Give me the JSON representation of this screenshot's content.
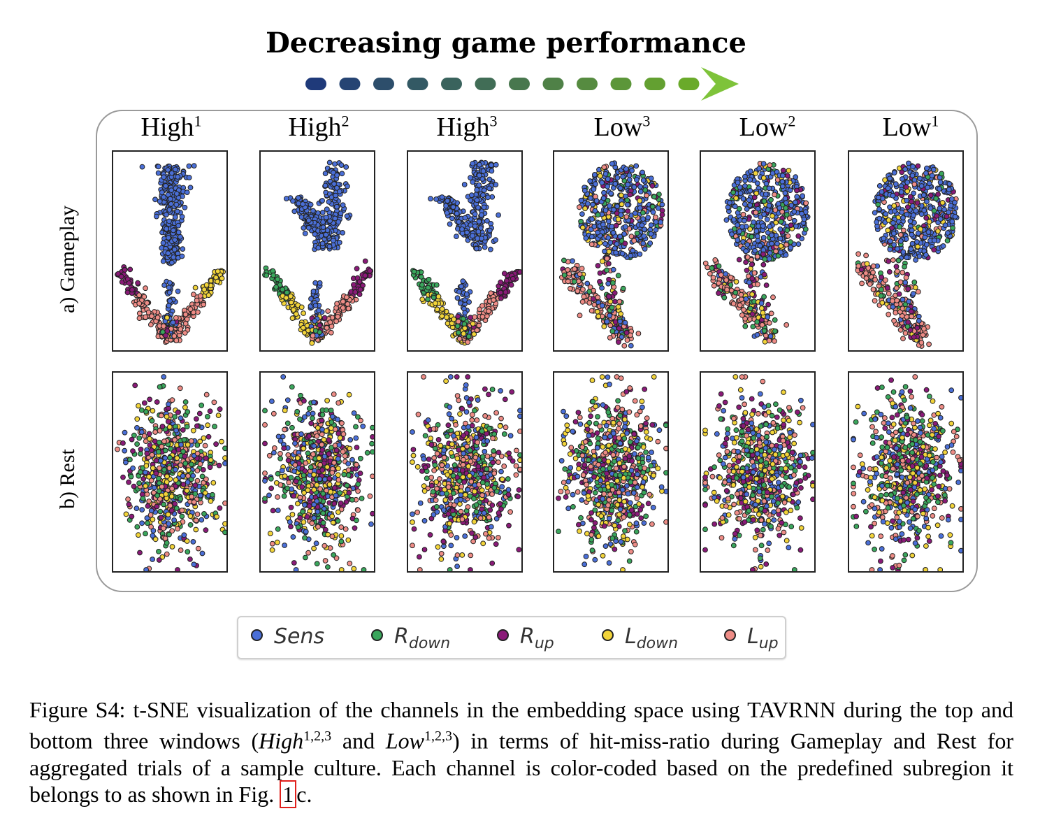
{
  "heading": "Decreasing game performance",
  "arrow_colors": [
    "#1f3a7a",
    "#6aaa2a",
    "#7ec33a"
  ],
  "columns": [
    {
      "label": "High",
      "sup": "1"
    },
    {
      "label": "High",
      "sup": "2"
    },
    {
      "label": "High",
      "sup": "3"
    },
    {
      "label": "Low",
      "sup": "3"
    },
    {
      "label": "Low",
      "sup": "2"
    },
    {
      "label": "Low",
      "sup": "1"
    }
  ],
  "rows": [
    {
      "label": "a) Gameplay"
    },
    {
      "label": "b) Rest"
    }
  ],
  "legend": [
    {
      "main": "Sens",
      "sub": "",
      "color": "#4a6fd8"
    },
    {
      "main": "R",
      "sub": "down",
      "color": "#3aa65c"
    },
    {
      "main": "R",
      "sub": "up",
      "color": "#8a1a78"
    },
    {
      "main": "L",
      "sub": "down",
      "color": "#f2d43a"
    },
    {
      "main": "L",
      "sub": "up",
      "color": "#ee8c86"
    }
  ],
  "caption": {
    "part1": "Figure S4: t-SNE visualization of the channels in the embedding space using TAVRNN during the top and bottom three windows (",
    "high": "High",
    "mid": " and ",
    "low": "Low",
    "sup": "1,2,3",
    "part2": ") in terms of hit-miss-ratio during Gameplay and Rest for aggregated trials of a sample culture. Each channel is color-coded based on the predefined subregion it belongs to as shown in Fig. ",
    "ref": "1",
    "part3": "c."
  }
}
